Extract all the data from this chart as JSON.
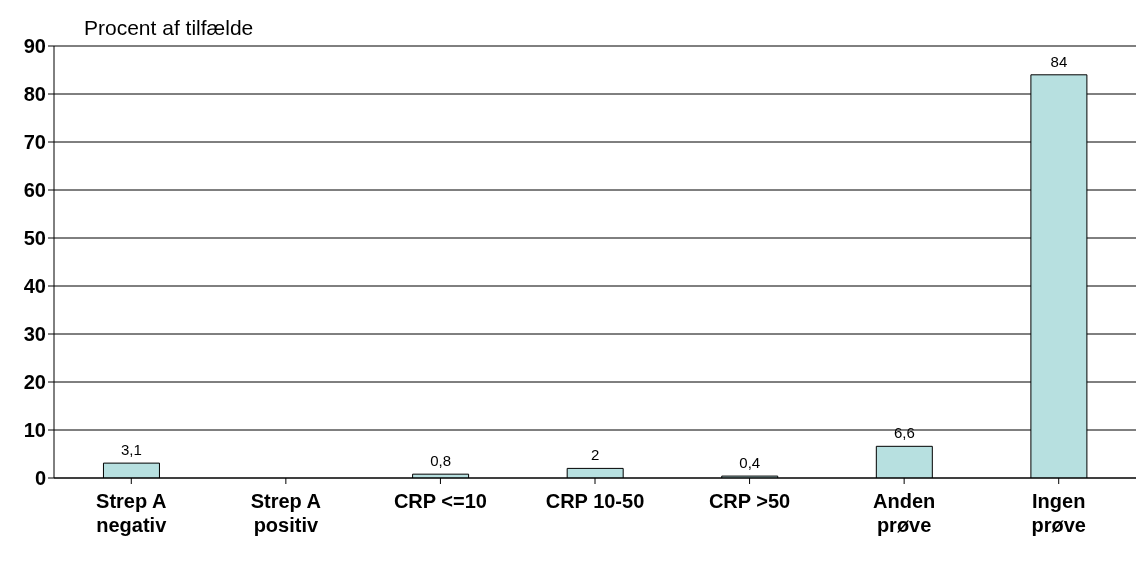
{
  "chart_data": {
    "type": "bar",
    "ylabel": "Procent af tilfælde",
    "categories": [
      "Strep A negativ",
      "Strep A positiv",
      "CRP <=10",
      "CRP 10-50",
      "CRP >50",
      "Anden prøve",
      "Ingen prøve"
    ],
    "values": [
      3.1,
      null,
      0.8,
      2,
      0.4,
      6.6,
      84
    ],
    "value_labels": [
      "3,1",
      null,
      "0,8",
      "2",
      "0,4",
      "6,6",
      "84"
    ],
    "color": "#b7e0e0",
    "ylim": [
      0,
      90
    ],
    "yticks": [
      0,
      10,
      20,
      30,
      40,
      50,
      60,
      70,
      80,
      90
    ],
    "grid": "y"
  }
}
